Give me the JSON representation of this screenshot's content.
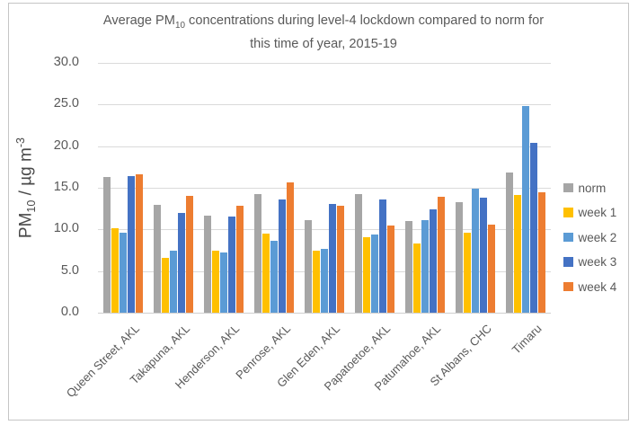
{
  "frame": {
    "border_color": "#c5c5c5",
    "background": "#ffffff"
  },
  "title": {
    "line1_pre": "Average PM",
    "line1_sub": "10",
    "line1_post": " concentrations during level-4 lockdown compared to norm for",
    "line2": "this time of year, 2015-19",
    "color": "#595959"
  },
  "y_axis": {
    "label": {
      "pre": "PM",
      "sub": "10",
      "mid": " / µg m",
      "sup": "-3"
    },
    "tick_labels": [
      "0.0",
      "5.0",
      "10.0",
      "15.0",
      "20.0",
      "25.0",
      "30.0"
    ],
    "min": 0,
    "max": 30,
    "step": 5
  },
  "legend": {
    "entries": [
      {
        "label": "norm",
        "color": "#A6A6A6"
      },
      {
        "label": "week 1",
        "color": "#FFC000"
      },
      {
        "label": "week 2",
        "color": "#5B9BD5"
      },
      {
        "label": "week 3",
        "color": "#4472C4"
      },
      {
        "label": "week 4",
        "color": "#ED7D31"
      }
    ]
  },
  "chart_data": {
    "type": "bar",
    "title": "Average PM10 concentrations during level-4 lockdown compared to norm for this time of year, 2015-19",
    "categories": [
      "Queen Street, AKL",
      "Takapuna, AKL",
      "Henderson, AKL",
      "Penrose, AKL",
      "Glen Eden, AKL",
      "Papatoetoe, AKL",
      "Patumahoe, AKL",
      "St Albans, CHC",
      "Timaru"
    ],
    "series": [
      {
        "name": "norm",
        "color": "#A6A6A6",
        "values": [
          16.3,
          13.0,
          11.7,
          14.3,
          11.1,
          14.2,
          11.0,
          13.3,
          16.8
        ]
      },
      {
        "name": "week 1",
        "color": "#FFC000",
        "values": [
          10.2,
          6.6,
          7.4,
          9.5,
          7.4,
          9.1,
          8.3,
          9.6,
          14.1
        ]
      },
      {
        "name": "week 2",
        "color": "#5B9BD5",
        "values": [
          9.6,
          7.5,
          7.2,
          8.6,
          7.7,
          9.4,
          11.1,
          14.9,
          24.8
        ]
      },
      {
        "name": "week 3",
        "color": "#4472C4",
        "values": [
          16.4,
          12.0,
          11.5,
          13.6,
          13.1,
          13.6,
          12.4,
          13.8,
          20.4
        ]
      },
      {
        "name": "week 4",
        "color": "#ED7D31",
        "values": [
          16.6,
          14.0,
          12.9,
          15.7,
          12.8,
          10.5,
          13.9,
          10.6,
          14.5
        ]
      }
    ],
    "xlabel": "",
    "ylabel": "PM10 / µg m-3",
    "ylim": [
      0,
      30
    ],
    "grid": true,
    "legend_position": "right"
  }
}
